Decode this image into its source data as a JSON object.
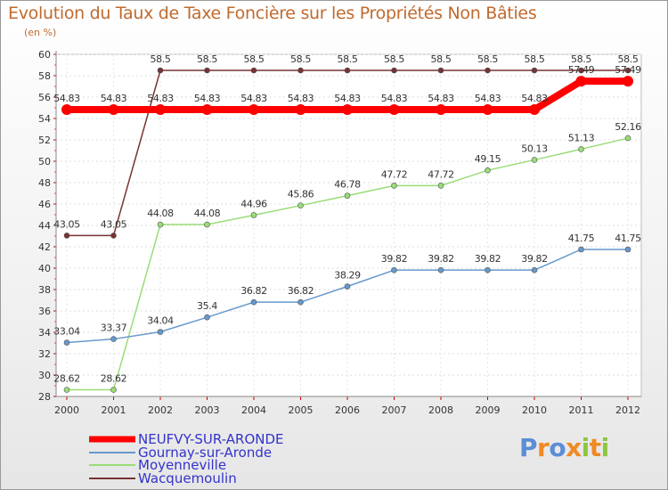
{
  "chart_data": {
    "type": "line",
    "title": "Evolution du Taux de Taxe Foncière sur les Propriétés Non Bâties",
    "subtitle": "(en %)",
    "x": [
      "2000",
      "2001",
      "2002",
      "2003",
      "2004",
      "2005",
      "2006",
      "2007",
      "2008",
      "2009",
      "2010",
      "2011",
      "2012"
    ],
    "ylim": [
      28,
      60
    ],
    "yticks": [
      28,
      30,
      32,
      34,
      36,
      38,
      40,
      42,
      44,
      46,
      48,
      50,
      52,
      54,
      56,
      58,
      60
    ],
    "grid": true,
    "series": [
      {
        "name": "NEUFVY-SUR-ARONDE",
        "color": "#ff0000",
        "width": 8,
        "marker": 6,
        "values": [
          54.83,
          54.83,
          54.83,
          54.83,
          54.83,
          54.83,
          54.83,
          54.83,
          54.83,
          54.83,
          54.83,
          57.49,
          57.49
        ],
        "labels": [
          "54.83",
          "54.83",
          "54.83",
          "54.83",
          "54.83",
          "54.83",
          "54.83",
          "54.83",
          "54.83",
          "54.83",
          "54.83",
          "57.49",
          "57.49"
        ]
      },
      {
        "name": "Gournay-sur-Aronde",
        "color": "#6699cc",
        "width": 1.5,
        "marker": 3,
        "values": [
          33.04,
          33.37,
          34.04,
          35.4,
          36.82,
          36.82,
          38.29,
          39.82,
          39.82,
          39.82,
          39.82,
          41.75,
          41.75
        ],
        "labels": [
          "33.04",
          "33.37",
          "34.04",
          "35.4",
          "36.82",
          "36.82",
          "38.29",
          "39.82",
          "39.82",
          "39.82",
          "39.82",
          "41.75",
          "41.75"
        ]
      },
      {
        "name": "Moyenneville",
        "color": "#99dd77",
        "width": 1.5,
        "marker": 3,
        "values": [
          28.62,
          28.62,
          44.08,
          44.08,
          44.96,
          45.86,
          46.78,
          47.72,
          47.72,
          49.15,
          50.13,
          51.13,
          52.16
        ],
        "labels": [
          "28.62",
          "28.62",
          "44.08",
          "44.08",
          "44.96",
          "45.86",
          "46.78",
          "47.72",
          "47.72",
          "49.15",
          "50.13",
          "51.13",
          "52.16"
        ]
      },
      {
        "name": "Wacquemoulin",
        "color": "#773333",
        "width": 1.5,
        "marker": 3,
        "values": [
          43.05,
          43.05,
          58.5,
          58.5,
          58.5,
          58.5,
          58.5,
          58.5,
          58.5,
          58.5,
          58.5,
          58.5,
          58.5
        ],
        "labels": [
          "43.05",
          "43.05",
          "58.5",
          "58.5",
          "58.5",
          "58.5",
          "58.5",
          "58.5",
          "58.5",
          "58.5",
          "58.5",
          "58.5",
          "58.5"
        ]
      }
    ],
    "legend": {
      "placement": "bottom-left"
    }
  },
  "branding": {
    "logo_letters": [
      "P",
      "r",
      "o",
      "x",
      "i",
      "t",
      "i"
    ],
    "logo_colors": [
      "#5b8ed6",
      "#f08a24",
      "#5b8ed6",
      "#f08a24",
      "#8cc63f",
      "#f08a24",
      "#8cc63f"
    ]
  }
}
